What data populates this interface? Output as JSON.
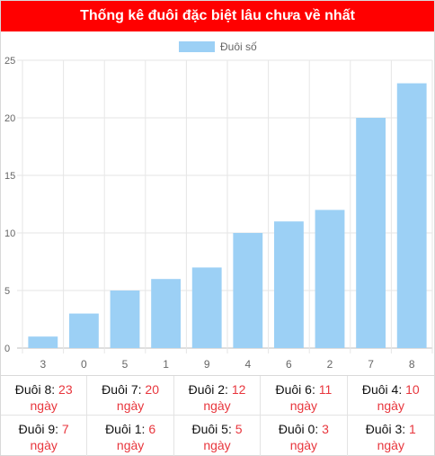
{
  "header": {
    "title": "Thống kê đuôi đặc biệt lâu chưa về nhất"
  },
  "colors": {
    "header_bg": "#ff0000",
    "bar": "#9cd0f5",
    "value_text": "#e8363d",
    "grid": "#e6e6e6"
  },
  "chart_data": {
    "type": "bar",
    "categories": [
      "3",
      "0",
      "5",
      "1",
      "9",
      "4",
      "6",
      "2",
      "7",
      "8"
    ],
    "series": [
      {
        "name": "Đuôi số",
        "values": [
          1,
          3,
          5,
          6,
          7,
          10,
          11,
          12,
          20,
          23
        ]
      }
    ],
    "ylim": [
      0,
      25
    ],
    "yticks": [
      0,
      5,
      10,
      15,
      20,
      25
    ],
    "grid": true,
    "legend": "top-center"
  },
  "table": {
    "rows": [
      [
        {
          "label": "Đuôi 8:",
          "value": "23",
          "unit": "ngày"
        },
        {
          "label": "Đuôi 7:",
          "value": "20",
          "unit": "ngày"
        },
        {
          "label": "Đuôi 2:",
          "value": "12",
          "unit": "ngày"
        },
        {
          "label": "Đuôi 6:",
          "value": "11",
          "unit": "ngày"
        },
        {
          "label": "Đuôi 4:",
          "value": "10",
          "unit": "ngày"
        }
      ],
      [
        {
          "label": "Đuôi 9:",
          "value": "7",
          "unit": "ngày"
        },
        {
          "label": "Đuôi 1:",
          "value": "6",
          "unit": "ngày"
        },
        {
          "label": "Đuôi 5:",
          "value": "5",
          "unit": "ngày"
        },
        {
          "label": "Đuôi 0:",
          "value": "3",
          "unit": "ngày"
        },
        {
          "label": "Đuôi 3:",
          "value": "1",
          "unit": "ngày"
        }
      ]
    ]
  }
}
